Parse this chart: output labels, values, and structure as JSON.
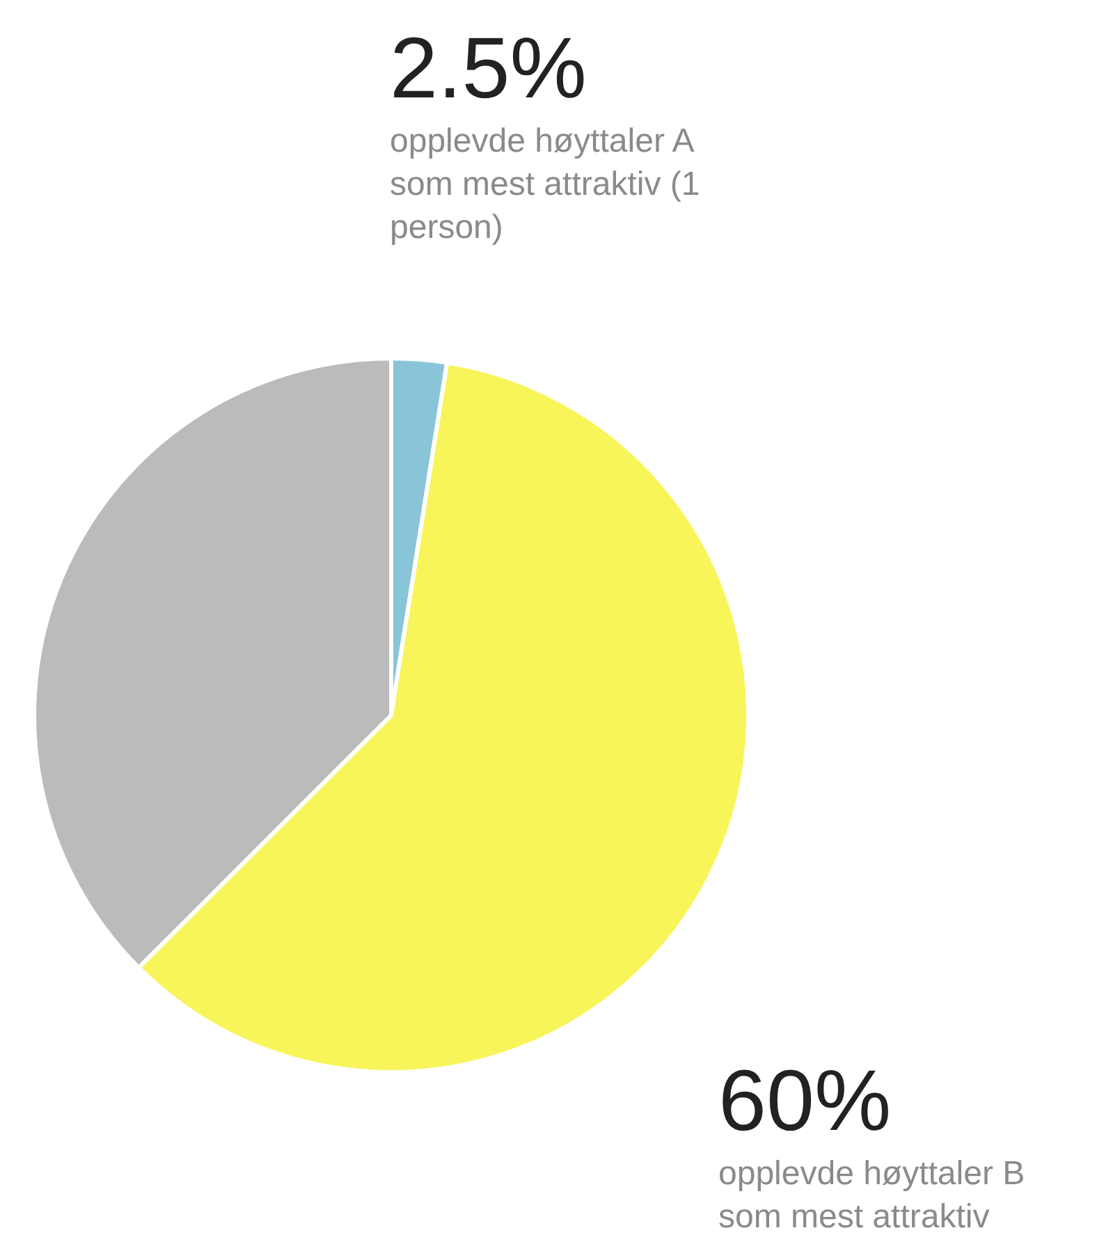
{
  "chart_data": {
    "type": "pie",
    "categories": [
      "opplevde høyttaler A som mest attraktiv (1 person)",
      "opplevde høyttaler B som mest attraktiv",
      null
    ],
    "values": [
      2.5,
      60,
      37.5
    ],
    "colors": [
      "#8ac4d8",
      "#f7f55a",
      "#bbbbbb"
    ],
    "value_labels": [
      "2.5%",
      "60%",
      null
    ],
    "legend": false
  }
}
